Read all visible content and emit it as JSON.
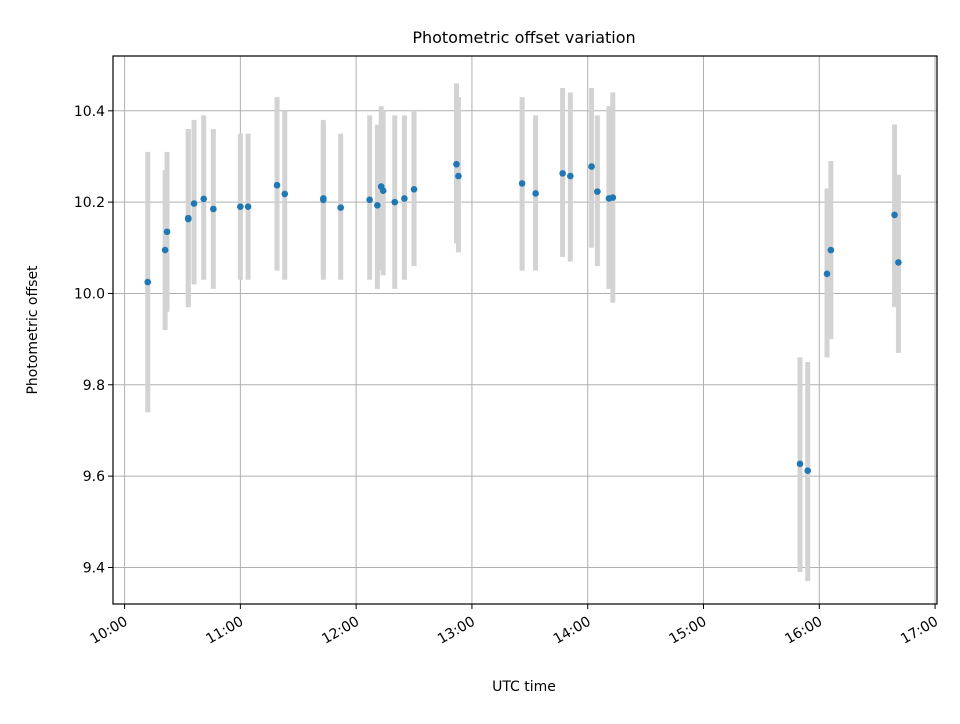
{
  "chart_data": {
    "type": "scatter",
    "title": "Photometric offset variation",
    "xlabel": "UTC time",
    "ylabel": "Photometric offset",
    "xlim": [
      "09:54",
      "17:01"
    ],
    "ylim": [
      9.32,
      10.52
    ],
    "x_ticks": [
      "10:00",
      "11:00",
      "12:00",
      "13:00",
      "14:00",
      "15:00",
      "16:00",
      "17:00"
    ],
    "y_ticks": [
      "9.4",
      "9.6",
      "9.8",
      "10.0",
      "10.2",
      "10.4"
    ],
    "grid": true,
    "colors": {
      "point": "#1f77b4",
      "errorbar": "#d3d3d3",
      "grid": "#b0b0b0"
    },
    "series": [
      {
        "points": [
          {
            "x": "10:12",
            "y": 10.025,
            "y_low": 9.74,
            "y_high": 10.31
          },
          {
            "x": "10:21",
            "y": 10.095,
            "y_low": 9.92,
            "y_high": 10.27
          },
          {
            "x": "10:22",
            "y": 10.135,
            "y_low": 9.96,
            "y_high": 10.31
          },
          {
            "x": "10:33",
            "y": 10.163,
            "y_low": 9.97,
            "y_high": 10.36
          },
          {
            "x": "10:33",
            "y": 10.165,
            "y_low": 9.97,
            "y_high": 10.36
          },
          {
            "x": "10:36",
            "y": 10.197,
            "y_low": 10.02,
            "y_high": 10.38
          },
          {
            "x": "10:41",
            "y": 10.207,
            "y_low": 10.03,
            "y_high": 10.39
          },
          {
            "x": "10:46",
            "y": 10.185,
            "y_low": 10.01,
            "y_high": 10.36
          },
          {
            "x": "11:00",
            "y": 10.19,
            "y_low": 10.03,
            "y_high": 10.35
          },
          {
            "x": "11:04",
            "y": 10.19,
            "y_low": 10.03,
            "y_high": 10.35
          },
          {
            "x": "11:19",
            "y": 10.237,
            "y_low": 10.05,
            "y_high": 10.43
          },
          {
            "x": "11:23",
            "y": 10.218,
            "y_low": 10.03,
            "y_high": 10.4
          },
          {
            "x": "11:43",
            "y": 10.208,
            "y_low": 10.04,
            "y_high": 10.38
          },
          {
            "x": "11:43",
            "y": 10.205,
            "y_low": 10.03,
            "y_high": 10.37
          },
          {
            "x": "11:52",
            "y": 10.188,
            "y_low": 10.03,
            "y_high": 10.35
          },
          {
            "x": "12:07",
            "y": 10.205,
            "y_low": 10.03,
            "y_high": 10.39
          },
          {
            "x": "12:11",
            "y": 10.193,
            "y_low": 10.01,
            "y_high": 10.37
          },
          {
            "x": "12:13",
            "y": 10.234,
            "y_low": 10.05,
            "y_high": 10.41
          },
          {
            "x": "12:14",
            "y": 10.225,
            "y_low": 10.04,
            "y_high": 10.4
          },
          {
            "x": "12:20",
            "y": 10.2,
            "y_low": 10.01,
            "y_high": 10.39
          },
          {
            "x": "12:25",
            "y": 10.208,
            "y_low": 10.03,
            "y_high": 10.39
          },
          {
            "x": "12:30",
            "y": 10.228,
            "y_low": 10.06,
            "y_high": 10.4
          },
          {
            "x": "12:52",
            "y": 10.283,
            "y_low": 10.11,
            "y_high": 10.46
          },
          {
            "x": "12:53",
            "y": 10.257,
            "y_low": 10.09,
            "y_high": 10.43
          },
          {
            "x": "13:26",
            "y": 10.241,
            "y_low": 10.05,
            "y_high": 10.43
          },
          {
            "x": "13:33",
            "y": 10.219,
            "y_low": 10.05,
            "y_high": 10.39
          },
          {
            "x": "13:47",
            "y": 10.263,
            "y_low": 10.08,
            "y_high": 10.45
          },
          {
            "x": "13:51",
            "y": 10.257,
            "y_low": 10.07,
            "y_high": 10.44
          },
          {
            "x": "14:02",
            "y": 10.278,
            "y_low": 10.1,
            "y_high": 10.45
          },
          {
            "x": "14:05",
            "y": 10.223,
            "y_low": 10.06,
            "y_high": 10.39
          },
          {
            "x": "14:11",
            "y": 10.208,
            "y_low": 10.01,
            "y_high": 10.41
          },
          {
            "x": "14:13",
            "y": 10.21,
            "y_low": 9.98,
            "y_high": 10.44
          },
          {
            "x": "15:50",
            "y": 9.627,
            "y_low": 9.39,
            "y_high": 9.86
          },
          {
            "x": "15:54",
            "y": 9.612,
            "y_low": 9.37,
            "y_high": 9.85
          },
          {
            "x": "16:04",
            "y": 10.043,
            "y_low": 9.86,
            "y_high": 10.23
          },
          {
            "x": "16:06",
            "y": 10.095,
            "y_low": 9.9,
            "y_high": 10.29
          },
          {
            "x": "16:39",
            "y": 10.172,
            "y_low": 9.97,
            "y_high": 10.37
          },
          {
            "x": "16:41",
            "y": 10.068,
            "y_low": 9.87,
            "y_high": 10.26
          }
        ]
      }
    ]
  }
}
